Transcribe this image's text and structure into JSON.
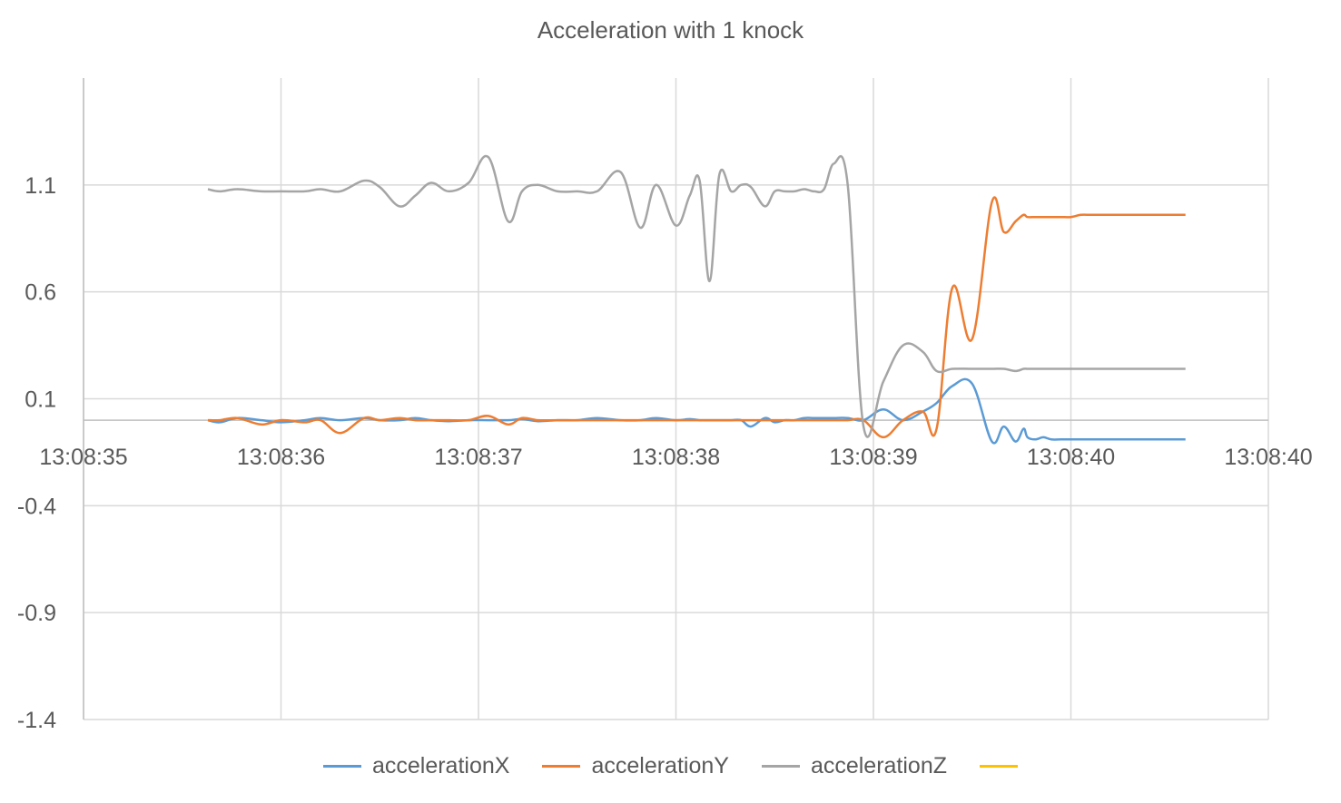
{
  "chart_data": {
    "type": "line",
    "title": "Acceleration with 1 knock",
    "xlabel": "",
    "ylabel": "",
    "x_axis": {
      "ticks": [
        "13:08:35",
        "13:08:36",
        "13:08:37",
        "13:08:38",
        "13:08:39",
        "13:08:40",
        "13:08:40"
      ],
      "tick_seconds": [
        0,
        1,
        2,
        3,
        4,
        5,
        6
      ],
      "range_seconds": [
        0,
        6
      ],
      "crosses_y_at": 0
    },
    "y_axis": {
      "ticks": [
        "1.1",
        "0.6",
        "0.1",
        "-0.4",
        "-0.9",
        "-1.4"
      ],
      "tick_values": [
        1.1,
        0.6,
        0.1,
        -0.4,
        -0.9,
        -1.4
      ],
      "range": [
        -1.4,
        1.6
      ]
    },
    "grid": true,
    "legend_position": "bottom",
    "x_seconds": [
      0.63,
      0.69,
      0.78,
      0.9,
      1.0,
      1.12,
      1.2,
      1.3,
      1.42,
      1.5,
      1.6,
      1.68,
      1.76,
      1.85,
      1.95,
      2.05,
      2.15,
      2.22,
      2.3,
      2.4,
      2.5,
      2.6,
      2.72,
      2.82,
      2.9,
      3.0,
      3.07,
      3.12,
      3.17,
      3.22,
      3.28,
      3.33,
      3.38,
      3.45,
      3.5,
      3.55,
      3.6,
      3.65,
      3.7,
      3.75,
      3.8,
      3.87,
      3.95,
      4.05,
      4.15,
      4.25,
      4.32,
      4.4,
      4.5,
      4.6,
      4.66,
      4.72,
      4.76,
      4.78,
      4.82,
      4.86,
      4.9,
      4.95,
      5.0,
      5.05,
      5.1,
      5.15,
      5.2,
      5.3,
      5.4,
      5.5,
      5.58
    ],
    "series": [
      {
        "name": "accelerationX",
        "color": "#5b9bd5",
        "values": [
          0.0,
          -0.01,
          0.01,
          0.0,
          -0.01,
          0.0,
          0.01,
          0.0,
          0.01,
          0.0,
          0.0,
          0.01,
          0.0,
          -0.005,
          0.0,
          0.0,
          0.0,
          0.005,
          -0.005,
          0.0,
          0.0,
          0.01,
          0.0,
          0.0,
          0.01,
          0.0,
          0.005,
          0.0,
          0.0,
          0.0,
          0.0,
          0.0,
          -0.03,
          0.01,
          -0.01,
          0.0,
          0.0,
          0.01,
          0.01,
          0.01,
          0.01,
          0.01,
          0.0,
          0.05,
          0.0,
          0.04,
          0.08,
          0.16,
          0.17,
          -0.1,
          -0.03,
          -0.1,
          -0.04,
          -0.08,
          -0.09,
          -0.08,
          -0.09,
          -0.09,
          -0.09,
          -0.09,
          -0.09,
          -0.09,
          -0.09,
          -0.09,
          -0.09,
          -0.09,
          -0.09
        ]
      },
      {
        "name": "accelerationY",
        "color": "#ed7d31",
        "values": [
          0.0,
          0.0,
          0.01,
          -0.02,
          0.0,
          -0.01,
          0.0,
          -0.06,
          0.01,
          0.0,
          0.01,
          0.0,
          0.0,
          0.0,
          0.0,
          0.02,
          -0.02,
          0.01,
          0.0,
          0.0,
          0.0,
          0.0,
          0.0,
          0.0,
          0.0,
          0.0,
          0.0,
          0.0,
          0.0,
          0.0,
          0.0,
          0.0,
          0.0,
          0.0,
          0.0,
          0.0,
          0.0,
          0.0,
          0.0,
          0.0,
          0.0,
          0.0,
          0.0,
          -0.08,
          0.0,
          0.04,
          -0.04,
          0.62,
          0.38,
          1.02,
          0.88,
          0.93,
          0.96,
          0.95,
          0.95,
          0.95,
          0.95,
          0.95,
          0.95,
          0.96,
          0.96,
          0.96,
          0.96,
          0.96,
          0.96,
          0.96,
          0.96
        ]
      },
      {
        "name": "accelerationZ",
        "color": "#a5a5a5",
        "values": [
          1.08,
          1.07,
          1.08,
          1.07,
          1.07,
          1.07,
          1.08,
          1.07,
          1.12,
          1.09,
          1.0,
          1.05,
          1.11,
          1.07,
          1.11,
          1.23,
          0.93,
          1.07,
          1.1,
          1.07,
          1.07,
          1.07,
          1.16,
          0.9,
          1.1,
          0.91,
          1.05,
          1.12,
          0.65,
          1.15,
          1.07,
          1.1,
          1.09,
          1.0,
          1.07,
          1.07,
          1.07,
          1.08,
          1.07,
          1.08,
          1.2,
          1.1,
          -0.03,
          0.18,
          0.35,
          0.32,
          0.23,
          0.24,
          0.24,
          0.24,
          0.24,
          0.23,
          0.24,
          0.24,
          0.24,
          0.24,
          0.24,
          0.24,
          0.24,
          0.24,
          0.24,
          0.24,
          0.24,
          0.24,
          0.24,
          0.24,
          0.24
        ]
      },
      {
        "name": "",
        "color": "#ffc000",
        "values": []
      }
    ]
  }
}
